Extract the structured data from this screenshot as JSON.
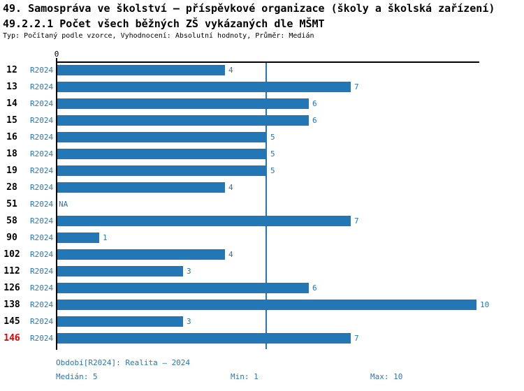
{
  "title": "49. Samospráva ve školství – příspěvkové organizace (školy a školská zařízení)",
  "subtitle": "49.2.2.1 Počet všech běžných ZŠ vykázaných dle MŠMT",
  "meta": "Typ: Počítaný podle vzorce, Vyhodnocení: Absolutní hodnoty, Průměr: Medián",
  "chart_data": {
    "type": "bar",
    "orientation": "horizontal",
    "title": "49.2.2.1 Počet všech běžných ZŠ vykázaných dle MŠMT",
    "categories": [
      "12",
      "13",
      "14",
      "15",
      "16",
      "18",
      "19",
      "28",
      "51",
      "58",
      "90",
      "102",
      "112",
      "126",
      "138",
      "145",
      "146"
    ],
    "series_label": "R2024",
    "values": [
      4,
      7,
      6,
      6,
      5,
      5,
      5,
      4,
      null,
      7,
      1,
      4,
      3,
      6,
      10,
      3,
      7
    ],
    "na_text": "NA",
    "highlighted_category": "146",
    "xlim": [
      0,
      10
    ],
    "x_tick_labels": [
      "0"
    ],
    "median_line": 5,
    "grid": false,
    "legend_position": "none",
    "colors": {
      "bar": "#2277B4",
      "label_blue": "#2878B6",
      "highlight_label": "#E00000",
      "axis": "#000000"
    }
  },
  "footer": {
    "period": "Období[R2024]: Realita – 2024",
    "median": "Medián: 5",
    "min": "Min: 1",
    "max": "Max: 10"
  }
}
